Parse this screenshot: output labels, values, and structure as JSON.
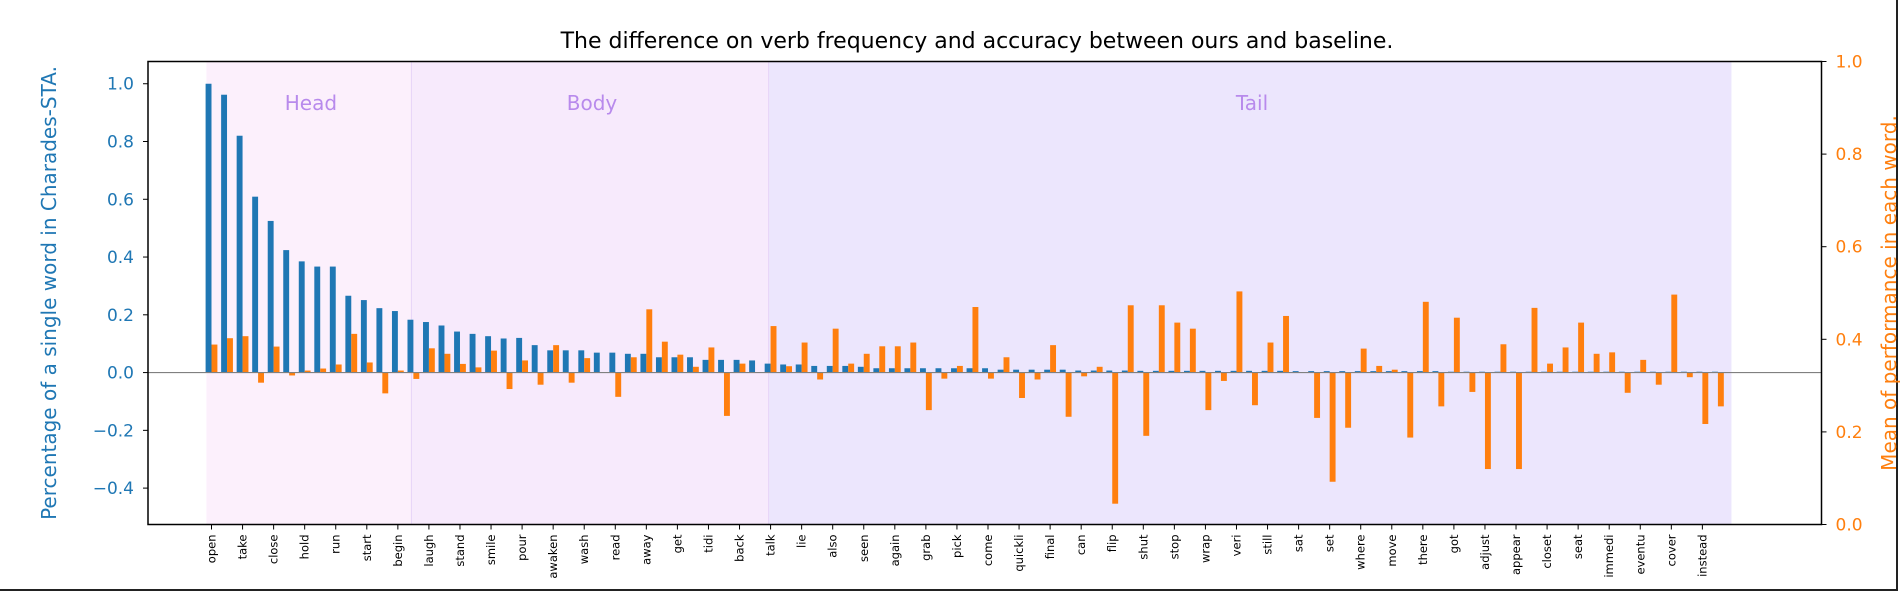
{
  "chart_data": {
    "type": "bar",
    "title": "The difference on verb frequency and accuracy between ours and baseline.",
    "ylabel": "Percentage of a single word in Charades-STA.",
    "ylabel_right": "Mean of performance in each word.",
    "ylim": [
      -0.526,
      1.077
    ],
    "ylim_right": [
      0.0,
      1.0
    ],
    "yticks": [
      "−0.4",
      "−0.2",
      "0.0",
      "0.2",
      "0.4",
      "0.6",
      "0.8",
      "1.0"
    ],
    "ytick_values": [
      -0.4,
      -0.2,
      0.0,
      0.2,
      0.4,
      0.6,
      0.8,
      1.0
    ],
    "yticks_right": [
      "0.0",
      "0.2",
      "0.4",
      "0.6",
      "0.8",
      "1.0"
    ],
    "ytick_right_values": [
      0.0,
      0.2,
      0.4,
      0.6,
      0.8,
      1.0
    ],
    "xtick_labels": [
      "open",
      "take",
      "close",
      "hold",
      "run",
      "start",
      "begin",
      "laugh",
      "stand",
      "smile",
      "pour",
      "awaken",
      "wash",
      "read",
      "away",
      "get",
      "tidi",
      "back",
      "talk",
      "lie",
      "also",
      "seen",
      "again",
      "grab",
      "pick",
      "come",
      "quickli",
      "final",
      "can",
      "flip",
      "shut",
      "stop",
      "wrap",
      "veri",
      "still",
      "sat",
      "set",
      "where",
      "move",
      "there",
      "got",
      "adjust",
      "appear",
      "closet",
      "seat",
      "immedi",
      "eventu",
      "cover",
      "instead"
    ],
    "xtick_every": 2,
    "regions": [
      {
        "label": "Head",
        "start": -0.2,
        "end": 13,
        "color": "#fcf0fc"
      },
      {
        "label": "Body",
        "start": 13,
        "end": 36,
        "color": "#f7eafc"
      },
      {
        "label": "Tail",
        "start": 36,
        "end": 98,
        "color": "#ece6fd"
      }
    ],
    "region_text_color": "#b88aec",
    "series": [
      {
        "name": "frequency",
        "color": "#1f77b4",
        "values": [
          1.0,
          0.962,
          0.82,
          0.609,
          0.525,
          0.424,
          0.385,
          0.367,
          0.367,
          0.266,
          0.251,
          0.223,
          0.213,
          0.183,
          0.175,
          0.163,
          0.142,
          0.134,
          0.126,
          0.118,
          0.12,
          0.095,
          0.077,
          0.077,
          0.077,
          0.069,
          0.069,
          0.065,
          0.065,
          0.053,
          0.053,
          0.053,
          0.044,
          0.044,
          0.044,
          0.042,
          0.031,
          0.028,
          0.028,
          0.023,
          0.023,
          0.023,
          0.02,
          0.015,
          0.015,
          0.015,
          0.015,
          0.015,
          0.015,
          0.015,
          0.015,
          0.01,
          0.01,
          0.01,
          0.01,
          0.01,
          0.007,
          0.007,
          0.007,
          0.007,
          0.006,
          0.006,
          0.006,
          0.006,
          0.006,
          0.006,
          0.006,
          0.006,
          0.006,
          0.006,
          0.005,
          0.005,
          0.005,
          0.005,
          0.005,
          0.005,
          0.005,
          0.005,
          0.005,
          0.005,
          0.003,
          0.003,
          0.003,
          0.003,
          0.003,
          0.003,
          0.003,
          0.003,
          0.003,
          0.003,
          0.003,
          0.003,
          0.003,
          0.003,
          0.003,
          0.003,
          0.003,
          0.003
        ]
      },
      {
        "name": "accuracy difference",
        "color": "#ff7f0e",
        "values": [
          0.097,
          0.119,
          0.126,
          -0.035,
          0.09,
          -0.01,
          0.007,
          0.014,
          0.028,
          0.134,
          0.035,
          -0.072,
          0.007,
          -0.022,
          0.084,
          0.065,
          0.03,
          0.018,
          0.076,
          -0.057,
          0.042,
          -0.042,
          0.095,
          -0.035,
          0.05,
          0,
          -0.084,
          0.053,
          0.219,
          0.107,
          0.062,
          0.02,
          0.087,
          -0.15,
          0.031,
          0,
          0.161,
          0.022,
          0.104,
          -0.024,
          0.152,
          0.031,
          0.065,
          0.091,
          0.091,
          0.104,
          -0.13,
          -0.021,
          0.023,
          0.227,
          -0.021,
          0.053,
          -0.088,
          -0.024,
          0.095,
          -0.153,
          -0.013,
          0.02,
          -0.454,
          0.233,
          -0.219,
          0.233,
          0.173,
          0.152,
          -0.13,
          -0.029,
          0.281,
          -0.113,
          0.104,
          0.196,
          0,
          -0.157,
          -0.378,
          -0.191,
          0.083,
          0.023,
          0.01,
          -0.225,
          0.245,
          -0.117,
          0.19,
          -0.067,
          -0.334,
          0.098,
          -0.334,
          0.224,
          0.031,
          0.087,
          0.173,
          0.065,
          0.07,
          -0.07,
          0.044,
          -0.042,
          0.27,
          -0.016,
          -0.178,
          -0.117
        ]
      }
    ],
    "zero_line": true,
    "legend": "none"
  }
}
